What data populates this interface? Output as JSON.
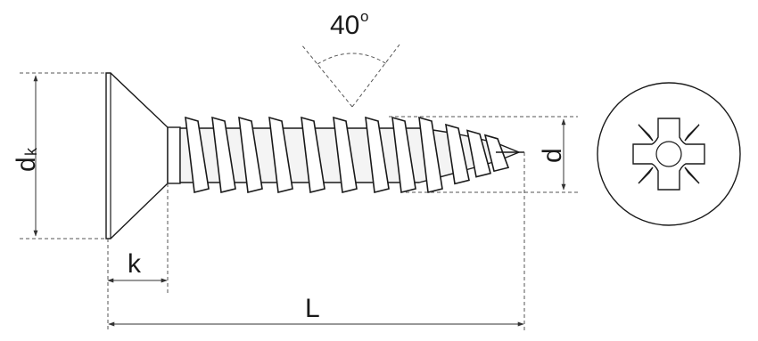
{
  "labels": {
    "angle": "40",
    "angle_degree_mark": "o",
    "head_diameter": "d",
    "head_diameter_subscript": "k",
    "head_height": "k",
    "length": "L",
    "thread_diameter": "d"
  },
  "colors": {
    "line": "#1a1a1a",
    "dim_line": "#333333",
    "dashed": "#555555",
    "background": "#ffffff"
  },
  "icons": {
    "screw_side_view": "countersunk-screw-icon",
    "screw_head_top_view": "pozidriv-head-icon"
  }
}
